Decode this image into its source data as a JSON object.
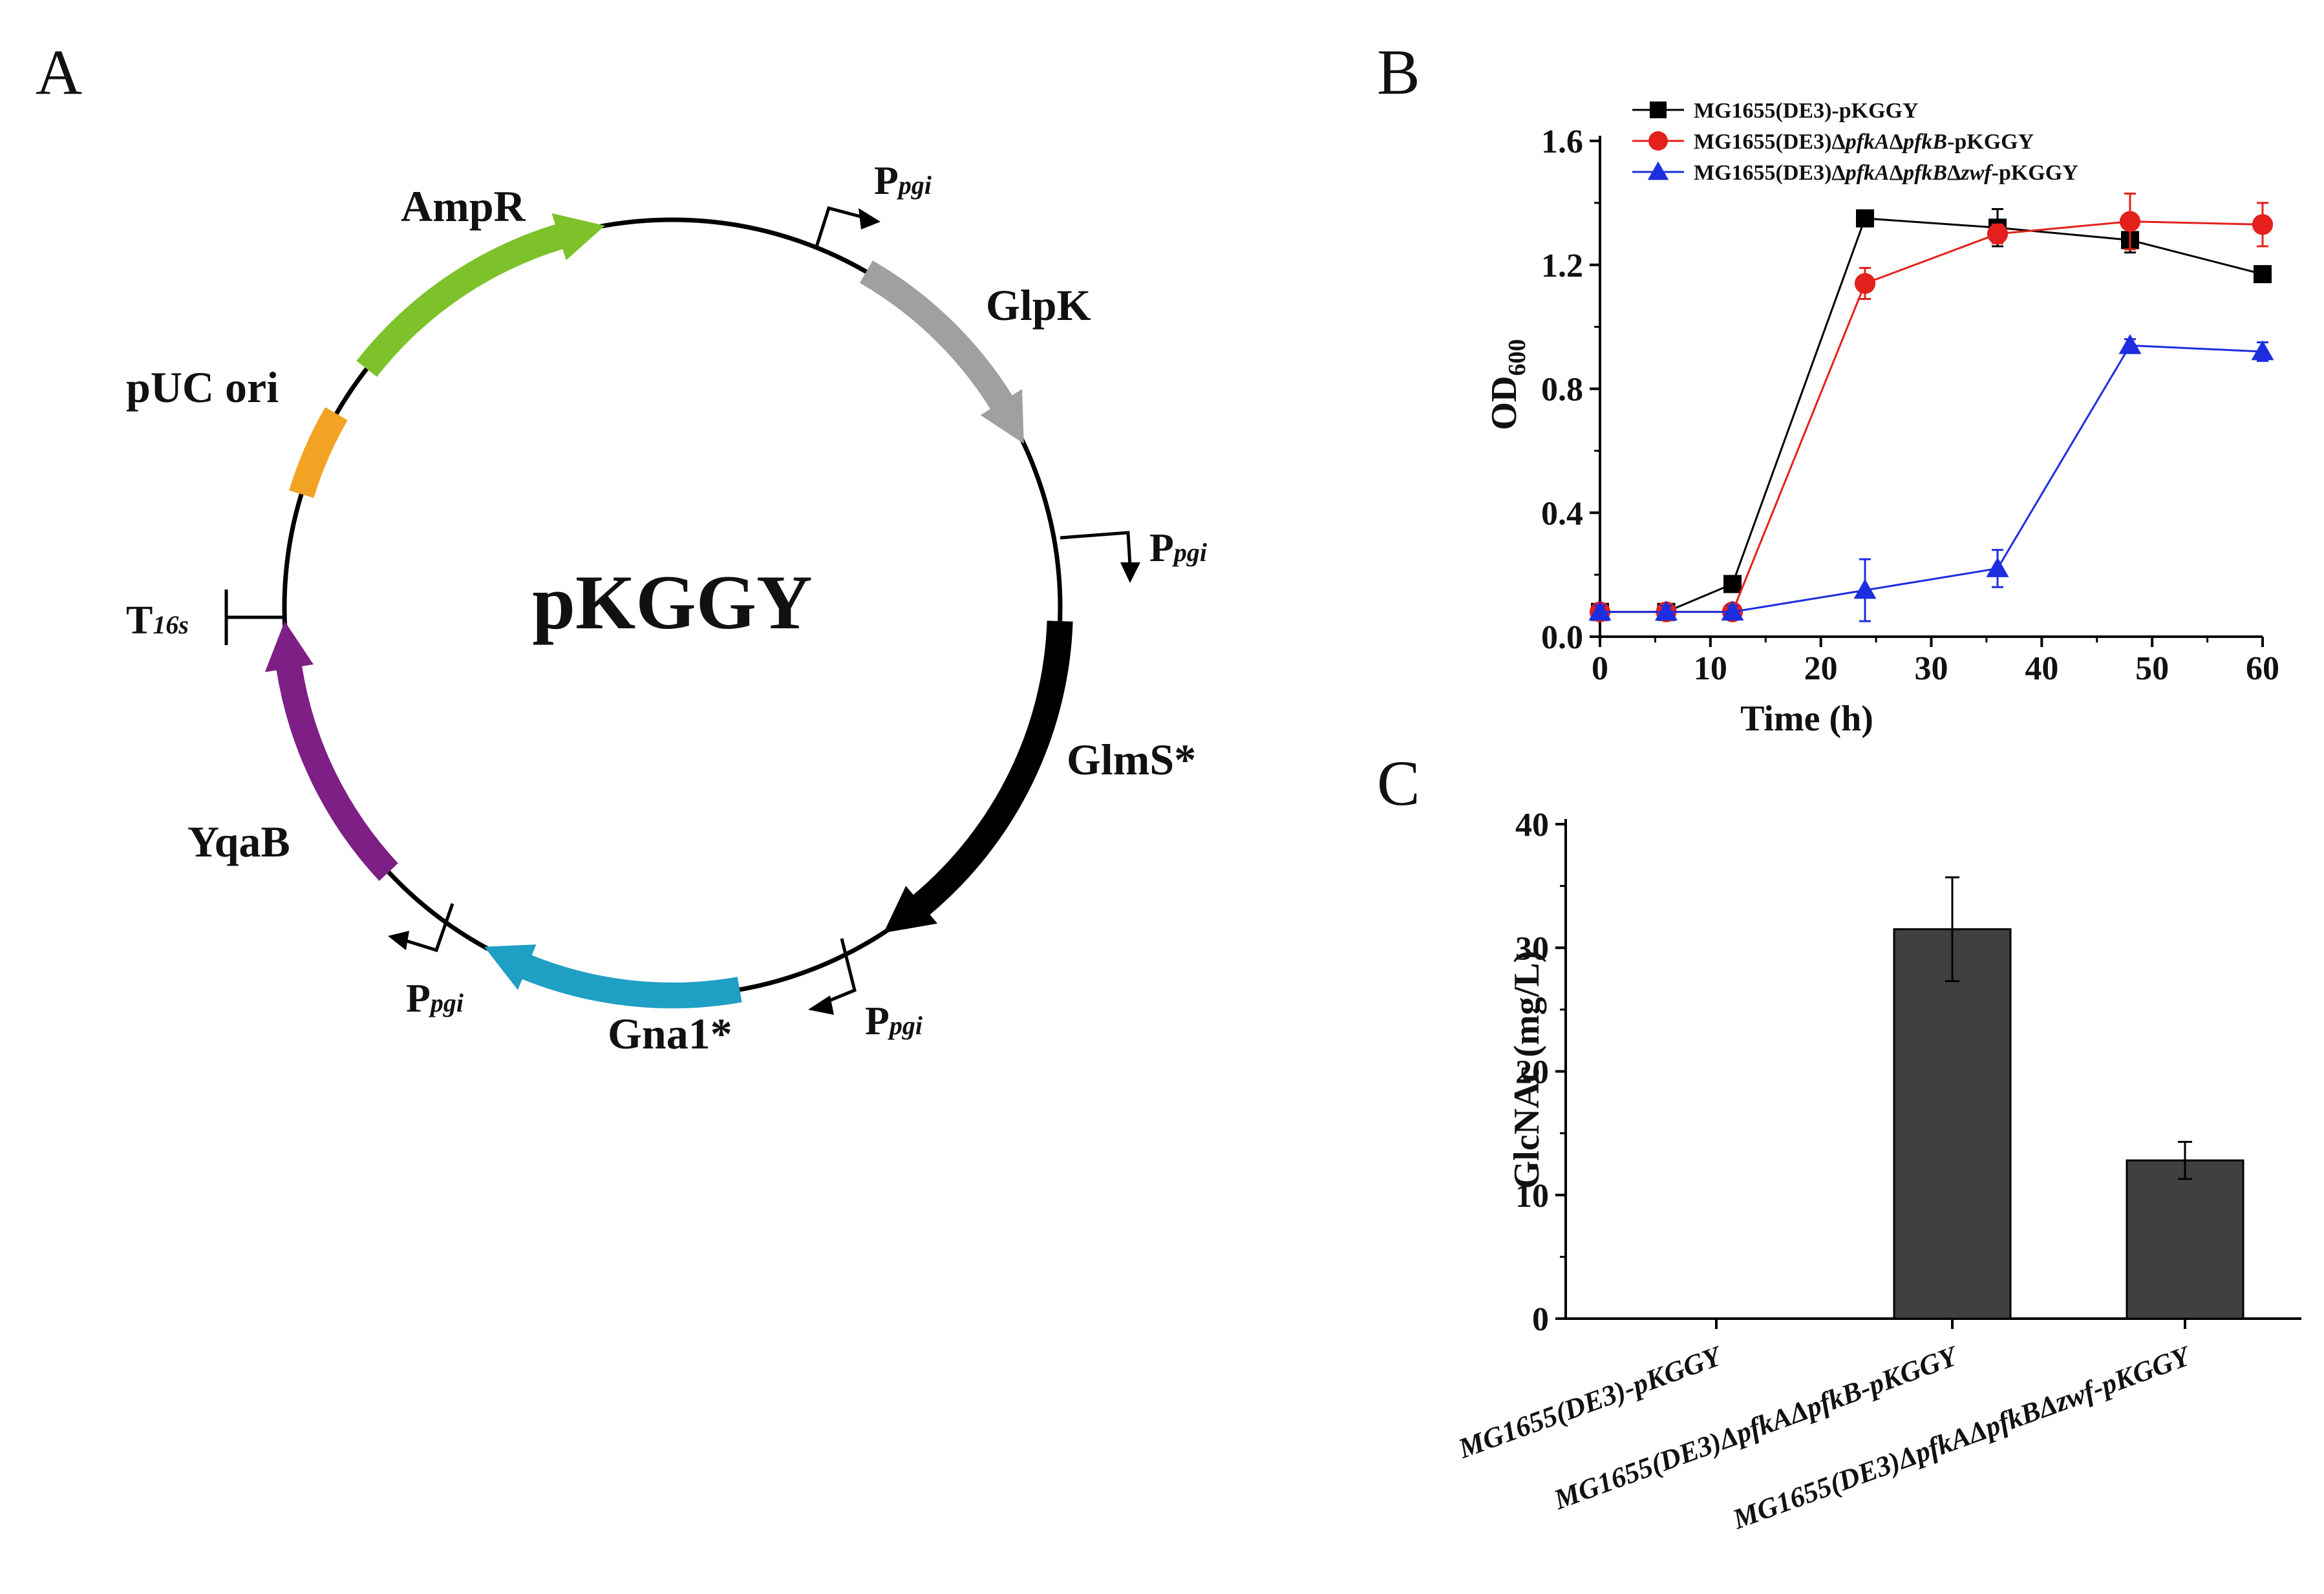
{
  "panels": {
    "a": "A",
    "b": "B",
    "c": "C"
  },
  "plasmid": {
    "name": "pKGGY",
    "features": {
      "ampr": "AmpR",
      "glpk": "GlpK",
      "glms": "GlmS*",
      "gna1": "Gna1*",
      "yqab": "YqaB",
      "puc": "pUC ori"
    },
    "promoter_main": "P",
    "promoter_sub": "pgi",
    "terminator_main": "T",
    "terminator_sub": "16s",
    "colors": {
      "ampr": "#7dc22b",
      "glpk": "#a0a0a0",
      "glms": "#000000",
      "gna1": "#1f9fc4",
      "yqab": "#7e1f86",
      "puc": "#f2a324"
    }
  },
  "chart_data": [
    {
      "type": "line",
      "panel": "B",
      "xlabel": "Time (h)",
      "ylabel_main": "OD",
      "ylabel_sub": "600",
      "xlim": [
        0,
        60
      ],
      "ylim": [
        0,
        1.6
      ],
      "xticks": [
        0,
        10,
        20,
        30,
        40,
        50,
        60
      ],
      "yticks": [
        "0.0",
        "0.4",
        "0.8",
        "1.2",
        "1.6"
      ],
      "legend_position": "top",
      "series": [
        {
          "name": "MG1655(DE3)-pKGGY",
          "legend_parts": [
            {
              "t": "MG1655(DE3)-pKGGY",
              "i": false
            }
          ],
          "color": "#000000",
          "marker": "square",
          "x": [
            0,
            6,
            12,
            24,
            36,
            48,
            60
          ],
          "y": [
            0.08,
            0.08,
            0.17,
            1.35,
            1.32,
            1.28,
            1.17
          ],
          "err": [
            0.02,
            0.02,
            0.02,
            0.01,
            0.06,
            0.04,
            0.02
          ]
        },
        {
          "name": "MG1655(DE3)ΔpfkAΔpfkB-pKGGY",
          "legend_parts": [
            {
              "t": "MG1655(DE3)Δ",
              "i": false
            },
            {
              "t": "pfkA",
              "i": true
            },
            {
              "t": "Δ",
              "i": false
            },
            {
              "t": "pfkB",
              "i": true
            },
            {
              "t": "-pKGGY",
              "i": false
            }
          ],
          "color": "#e3201b",
          "marker": "circle",
          "x": [
            0,
            6,
            12,
            24,
            36,
            48,
            60
          ],
          "y": [
            0.08,
            0.08,
            0.08,
            1.14,
            1.3,
            1.34,
            1.33
          ],
          "err": [
            0.02,
            0.02,
            0.02,
            0.05,
            0.03,
            0.09,
            0.07
          ]
        },
        {
          "name": "MG1655(DE3)ΔpfkAΔpfkBΔzwf-pKGGY",
          "legend_parts": [
            {
              "t": "MG1655(DE3)Δ",
              "i": false
            },
            {
              "t": "pfkA",
              "i": true
            },
            {
              "t": "Δ",
              "i": false
            },
            {
              "t": "pfkB",
              "i": true
            },
            {
              "t": "Δ",
              "i": false
            },
            {
              "t": "zwf",
              "i": true
            },
            {
              "t": "-pKGGY",
              "i": false
            }
          ],
          "color": "#1c2ee0",
          "marker": "triangle",
          "x": [
            0,
            6,
            12,
            24,
            36,
            48,
            60
          ],
          "y": [
            0.08,
            0.08,
            0.08,
            0.15,
            0.22,
            0.94,
            0.92
          ],
          "err": [
            0.02,
            0.02,
            0.02,
            0.1,
            0.06,
            0.02,
            0.03
          ]
        }
      ]
    },
    {
      "type": "bar",
      "panel": "C",
      "ylabel": "GlcNAc (mg/L)",
      "ylim": [
        0,
        40
      ],
      "yticks": [
        "0",
        "10",
        "20",
        "30",
        "40"
      ],
      "color": "#404040",
      "categories": [
        [
          {
            "t": "MG1655(DE3)-pKGGY",
            "i": false
          }
        ],
        [
          {
            "t": "MG1655(DE3)Δ",
            "i": false
          },
          {
            "t": "pfkA",
            "i": true
          },
          {
            "t": "Δ",
            "i": false
          },
          {
            "t": "pfkB",
            "i": true
          },
          {
            "t": "-pKGGY",
            "i": false
          }
        ],
        [
          {
            "t": "MG1655(DE3)Δ",
            "i": false
          },
          {
            "t": "pfkA",
            "i": true
          },
          {
            "t": "Δ",
            "i": false
          },
          {
            "t": "pfkB",
            "i": true
          },
          {
            "t": "Δ",
            "i": false
          },
          {
            "t": "zwf",
            "i": true
          },
          {
            "t": "-pKGGY",
            "i": false
          }
        ]
      ],
      "values": [
        0,
        31.5,
        12.8
      ],
      "errors": [
        0,
        4.2,
        1.5
      ]
    }
  ]
}
